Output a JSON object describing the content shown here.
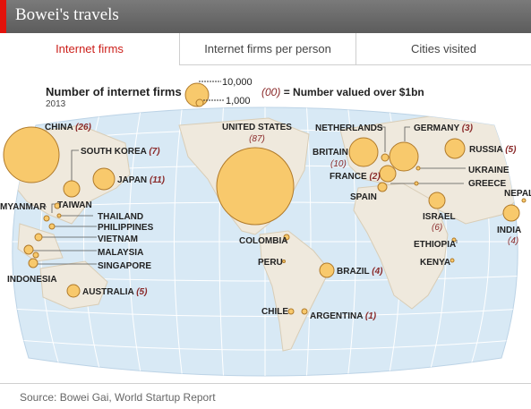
{
  "header": {
    "title": "Bowei's travels"
  },
  "tabs": [
    {
      "label": "Internet firms",
      "active": true
    },
    {
      "label": "Internet firms per person",
      "active": false
    },
    {
      "label": "Cities visited",
      "active": false
    }
  ],
  "legend": {
    "title": "Number of internet firms",
    "year": "2013",
    "large_label": "10,000",
    "small_label": "1,000",
    "note_paren": "(00)",
    "note_text": "= Number valued over $1bn"
  },
  "colors": {
    "bubble_fill": "#f8c96c",
    "bubble_stroke": "#b07a2a",
    "ocean": "#d8e9f5",
    "land": "#efe9dd",
    "accent": "#e3120b"
  },
  "places": [
    {
      "name": "CHINA",
      "count": "(26)"
    },
    {
      "name": "SOUTH KOREA",
      "count": "(7)"
    },
    {
      "name": "JAPAN",
      "count": "(11)"
    },
    {
      "name": "UNITED STATES",
      "count": "(87)"
    },
    {
      "name": "NETHERLANDS",
      "count": ""
    },
    {
      "name": "GERMANY",
      "count": "(3)"
    },
    {
      "name": "RUSSIA",
      "count": "(5)"
    },
    {
      "name": "BRITAIN",
      "count": "(10)"
    },
    {
      "name": "UKRAINE",
      "count": ""
    },
    {
      "name": "FRANCE",
      "count": "(2)"
    },
    {
      "name": "GREECE",
      "count": ""
    },
    {
      "name": "SPAIN",
      "count": ""
    },
    {
      "name": "NEPAL",
      "count": ""
    },
    {
      "name": "ISRAEL",
      "count": "(6)"
    },
    {
      "name": "INDIA",
      "count": "(4)"
    },
    {
      "name": "ETHIOPIA",
      "count": ""
    },
    {
      "name": "KENYA",
      "count": ""
    },
    {
      "name": "MYANMAR",
      "count": ""
    },
    {
      "name": "TAIWAN",
      "count": ""
    },
    {
      "name": "THAILAND",
      "count": ""
    },
    {
      "name": "PHILIPPINES",
      "count": ""
    },
    {
      "name": "VIETNAM",
      "count": ""
    },
    {
      "name": "MALAYSIA",
      "count": ""
    },
    {
      "name": "SINGAPORE",
      "count": ""
    },
    {
      "name": "INDONESIA",
      "count": ""
    },
    {
      "name": "AUSTRALIA",
      "count": "(5)"
    },
    {
      "name": "COLOMBIA",
      "count": ""
    },
    {
      "name": "PERU",
      "count": ""
    },
    {
      "name": "BRAZIL",
      "count": "(4)"
    },
    {
      "name": "CHILE",
      "count": ""
    },
    {
      "name": "ARGENTINA",
      "count": "(1)"
    }
  ],
  "source": "Source: Bowei Gai, World Startup Report"
}
